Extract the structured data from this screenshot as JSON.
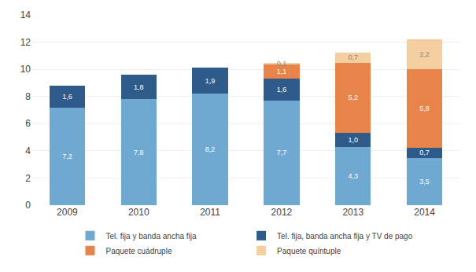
{
  "chart_data": {
    "type": "bar",
    "stacked": true,
    "data_labels": true,
    "grid": true,
    "legend": "bottom",
    "categories": [
      "2009",
      "2010",
      "2011",
      "2012",
      "2013",
      "2014"
    ],
    "series": [
      {
        "name": "Tel. fija y banda ancha fija",
        "color": "#6FA8D0",
        "values": [
          7.2,
          7.8,
          8.2,
          7.7,
          4.3,
          3.5
        ],
        "value_labels": [
          "7,2",
          "7,8",
          "8,2",
          "7,7",
          "4,3",
          "3,5"
        ]
      },
      {
        "name": "Tel. fija, banda ancha fija y TV de pago",
        "color": "#2E5B8A",
        "values": [
          1.6,
          1.8,
          1.9,
          1.6,
          1.0,
          0.7
        ],
        "value_labels": [
          "1,6",
          "1,8",
          "1,9",
          "1,6",
          "1,0",
          "0,7"
        ]
      },
      {
        "name": "Paquete cuádruple",
        "color": "#E8834A",
        "values": [
          0.0,
          0.0,
          0.0,
          1.1,
          5.2,
          5.8
        ],
        "value_labels": [
          null,
          null,
          null,
          "1,1",
          "5,2",
          "5,8"
        ]
      },
      {
        "name": "Paquete quíntuple",
        "color": "#F5CFA0",
        "values": [
          0.0,
          0.0,
          0.0,
          0.1,
          0.7,
          2.2
        ],
        "value_labels": [
          null,
          null,
          null,
          "0,1",
          "0,7",
          "2,2"
        ]
      }
    ],
    "ylim": [
      0,
      14
    ],
    "yticks": [
      0,
      2,
      4,
      6,
      8,
      10,
      12,
      14
    ]
  }
}
